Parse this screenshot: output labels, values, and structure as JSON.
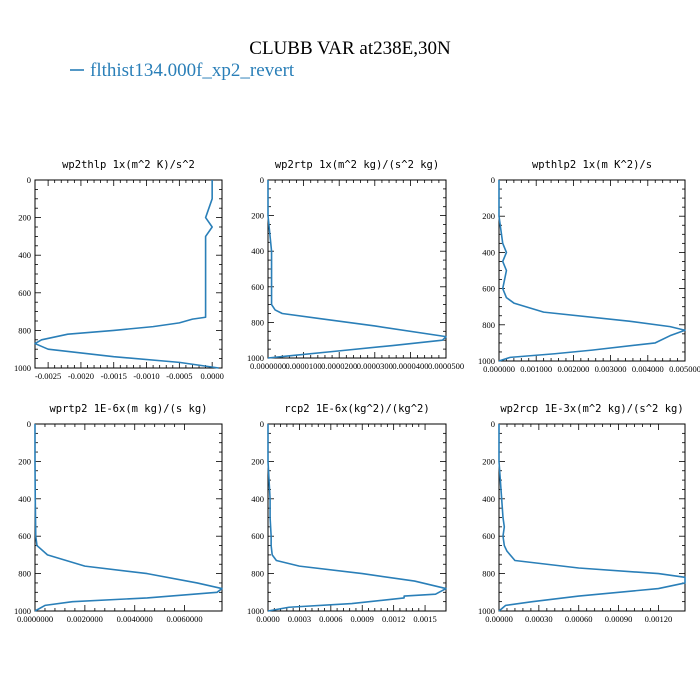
{
  "figure": {
    "title": "CLUBB VAR at238E,30N",
    "legend": {
      "label": "flthist134.000f_xp2_revert",
      "color": "#2a7fb8"
    }
  },
  "chart_data": [
    {
      "type": "line",
      "title": "wp2thlp   1x(m^2 K)/s^2",
      "series": [
        {
          "name": "flthist134.000f_xp2_revert",
          "x": [
            0.0,
            0.0,
            -0.0001,
            0.0,
            -0.0001,
            -0.0001,
            -0.0001,
            -0.0001,
            -0.0001,
            -0.0001,
            -0.0001,
            -0.0001,
            -0.0001,
            -0.0001,
            -0.0003,
            -0.0005,
            -0.0009,
            -0.0015,
            -0.0022,
            -0.0026,
            -0.0027,
            -0.0025,
            -0.0015,
            -0.0005,
            0.0001
          ],
          "y": [
            0,
            100,
            200,
            250,
            300,
            400,
            450,
            500,
            550,
            600,
            650,
            700,
            720,
            730,
            740,
            760,
            780,
            800,
            820,
            850,
            870,
            900,
            940,
            970,
            1000
          ]
        }
      ],
      "xlim": [
        -0.0027,
        0.00015
      ],
      "ylim": [
        1000,
        0
      ],
      "xticks": [
        -0.0025,
        -0.002,
        -0.0015,
        -0.001,
        -0.0005,
        0.0
      ],
      "xticklabels": [
        "-0.0025",
        "-0.0020",
        "-0.0015",
        "-0.0010",
        "-0.0005",
        "0.0000"
      ],
      "yticks": [
        0,
        200,
        400,
        600,
        800,
        1000
      ],
      "yticklabels": [
        "0",
        "200",
        "400",
        "600",
        "800",
        "1000"
      ]
    },
    {
      "type": "line",
      "title": "wp2rtp   1x(m^2 kg)/(s^2 kg)",
      "series": [
        {
          "name": "flthist134.000f_xp2_revert",
          "x": [
            0.0,
            0.0,
            1e-06,
            1e-06,
            1e-06,
            1e-06,
            1e-06,
            2e-06,
            4e-06,
            1.5e-05,
            3e-05,
            5e-05,
            4.9e-05,
            3.5e-05,
            2e-05,
            5e-06,
            0.0
          ],
          "y": [
            0,
            200,
            400,
            500,
            600,
            650,
            700,
            730,
            750,
            780,
            820,
            880,
            900,
            930,
            960,
            990,
            1000
          ]
        }
      ],
      "xlim": [
        0.0,
        5e-05
      ],
      "ylim": [
        1000,
        0
      ],
      "xticks": [
        0.0,
        1e-05,
        2e-05,
        3e-05,
        4e-05,
        5e-05
      ],
      "xticklabels": [
        "0.0000000",
        "0.0000100",
        "0.0000200",
        "0.0000300",
        "0.0000400",
        "0.0000500"
      ],
      "yticks": [
        0,
        200,
        400,
        600,
        800,
        1000
      ],
      "yticklabels": [
        "0",
        "200",
        "400",
        "600",
        "800",
        "1000"
      ]
    },
    {
      "type": "line",
      "title": "wpthlp2   1x(m K^2)/s",
      "series": [
        {
          "name": "flthist134.000f_xp2_revert",
          "x": [
            0.0,
            0.0,
            0.0001,
            0.0002,
            0.0001,
            0.0002,
            0.0001,
            0.0002,
            0.0004,
            0.0012,
            0.0035,
            0.0046,
            0.005,
            0.0046,
            0.0042,
            0.0025,
            0.0015,
            0.0003,
            0.0
          ],
          "y": [
            0,
            200,
            350,
            400,
            450,
            500,
            600,
            650,
            680,
            730,
            780,
            810,
            830,
            860,
            900,
            940,
            960,
            980,
            1000
          ]
        }
      ],
      "xlim": [
        0.0,
        0.005
      ],
      "ylim": [
        1000,
        0
      ],
      "xticks": [
        0.0,
        0.001,
        0.002,
        0.003,
        0.004,
        0.005
      ],
      "xticklabels": [
        "0.000000",
        "0.001000",
        "0.002000",
        "0.003000",
        "0.004000",
        "0.005000"
      ],
      "yticks": [
        0,
        200,
        400,
        600,
        800,
        1000
      ],
      "yticklabels": [
        "0",
        "200",
        "400",
        "600",
        "800",
        "1000"
      ]
    },
    {
      "type": "line",
      "title": "wprtp2   1E-6x(m kg)/(s kg)",
      "series": [
        {
          "name": "flthist134.000f_xp2_revert",
          "x": [
            0.0,
            0.0,
            1e-05,
            2e-05,
            3e-05,
            8e-05,
            0.0005,
            0.002,
            0.0045,
            0.0065,
            0.0075,
            0.0073,
            0.0045,
            0.0015,
            0.0004,
            0.0
          ],
          "y": [
            0,
            200,
            400,
            500,
            600,
            650,
            700,
            760,
            800,
            850,
            880,
            900,
            930,
            950,
            970,
            1000
          ]
        }
      ],
      "xlim": [
        0.0,
        0.0075
      ],
      "ylim": [
        1000,
        0
      ],
      "xticks": [
        0.0,
        0.002,
        0.004,
        0.006
      ],
      "xticklabels": [
        "0.0000000",
        "0.0020000",
        "0.0040000",
        "0.0060000"
      ],
      "yticks": [
        0,
        200,
        400,
        600,
        800,
        1000
      ],
      "yticklabels": [
        "0",
        "200",
        "400",
        "600",
        "800",
        "1000"
      ]
    },
    {
      "type": "line",
      "title": "rcp2   1E-6x(kg^2)/(kg^2)",
      "series": [
        {
          "name": "flthist134.000f_xp2_revert",
          "x": [
            0.0,
            0.0,
            2e-05,
            2e-05,
            3e-05,
            3e-05,
            4e-05,
            8e-05,
            0.0003,
            0.0009,
            0.0014,
            0.0017,
            0.0016,
            0.0013,
            0.0013,
            0.0008,
            0.0002,
            0.0
          ],
          "y": [
            0,
            200,
            400,
            500,
            600,
            650,
            700,
            730,
            760,
            800,
            840,
            880,
            910,
            920,
            930,
            960,
            980,
            1000
          ]
        }
      ],
      "xlim": [
        0.0,
        0.0017
      ],
      "ylim": [
        1000,
        0
      ],
      "xticks": [
        0.0,
        0.0003,
        0.0006,
        0.0009,
        0.0012,
        0.0015
      ],
      "xticklabels": [
        "0.0000",
        "0.0003",
        "0.0006",
        "0.0009",
        "0.0012",
        "0.0015"
      ],
      "yticks": [
        0,
        200,
        400,
        600,
        800,
        1000
      ],
      "yticklabels": [
        "0",
        "200",
        "400",
        "600",
        "800",
        "1000"
      ]
    },
    {
      "type": "line",
      "title": "wp2rcp   1E-3x(m^2 kg)/(s^2 kg)",
      "series": [
        {
          "name": "flthist134.000f_xp2_revert",
          "x": [
            0.0,
            0.0,
            2e-05,
            3e-05,
            4e-05,
            3e-05,
            4e-05,
            6e-05,
            0.00012,
            0.0006,
            0.0012,
            0.0014,
            0.0014,
            0.0012,
            0.0006,
            0.00025,
            5e-05,
            0.0
          ],
          "y": [
            0,
            200,
            400,
            500,
            550,
            600,
            650,
            680,
            730,
            770,
            800,
            820,
            850,
            880,
            920,
            950,
            970,
            1000
          ]
        }
      ],
      "xlim": [
        0.0,
        0.0014
      ],
      "ylim": [
        1000,
        0
      ],
      "xticks": [
        0.0,
        0.0003,
        0.0006,
        0.0009,
        0.0012
      ],
      "xticklabels": [
        "0.00000",
        "0.00030",
        "0.00060",
        "0.00090",
        "0.00120"
      ],
      "yticks": [
        0,
        200,
        400,
        600,
        800,
        1000
      ],
      "yticklabels": [
        "0",
        "200",
        "400",
        "600",
        "800",
        "1000"
      ]
    }
  ]
}
